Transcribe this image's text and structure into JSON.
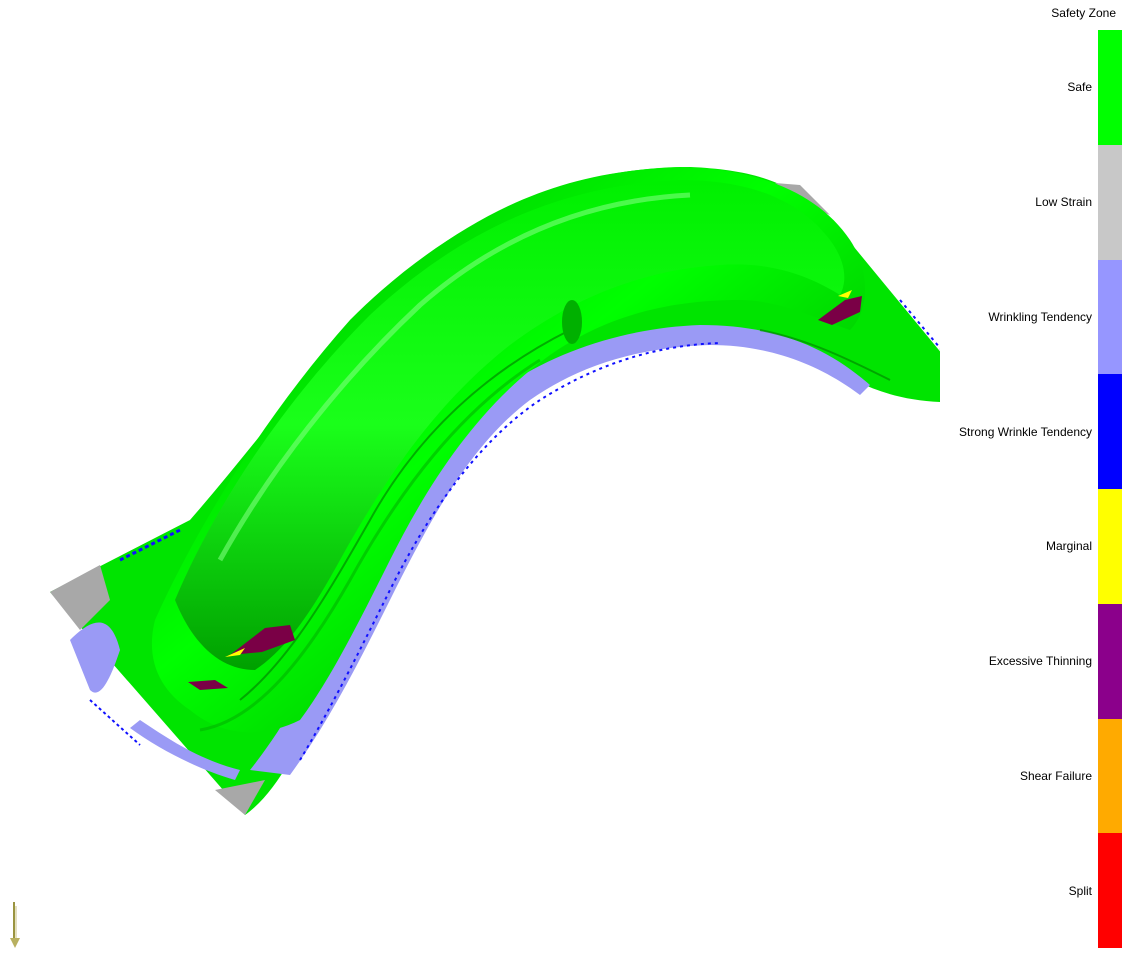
{
  "legend": {
    "title": "Safety Zone",
    "entries": [
      {
        "label": "Safe",
        "color": "#00ff00"
      },
      {
        "label": "Low Strain",
        "color": "#c8c8c8"
      },
      {
        "label": "Wrinkling Tendency",
        "color": "#9696ff"
      },
      {
        "label": "Strong Wrinkle Tendency",
        "color": "#0000ff"
      },
      {
        "label": "Marginal",
        "color": "#ffff00"
      },
      {
        "label": "Excessive Thinning",
        "color": "#8b008b"
      },
      {
        "label": "Shear Failure",
        "color": "#ffaa00"
      },
      {
        "label": "Split",
        "color": "#ff0000"
      }
    ]
  },
  "viewport": {
    "part_colors": {
      "safe": "#00e000",
      "safe_dark": "#008c00",
      "low_strain": "#a8a8a8",
      "wrinkling": "#9696ff",
      "strong_wrinkle": "#0000ff",
      "thinning": "#7a0046",
      "marginal": "#ffff00"
    },
    "axis_icon": "axis-triad-icon"
  }
}
